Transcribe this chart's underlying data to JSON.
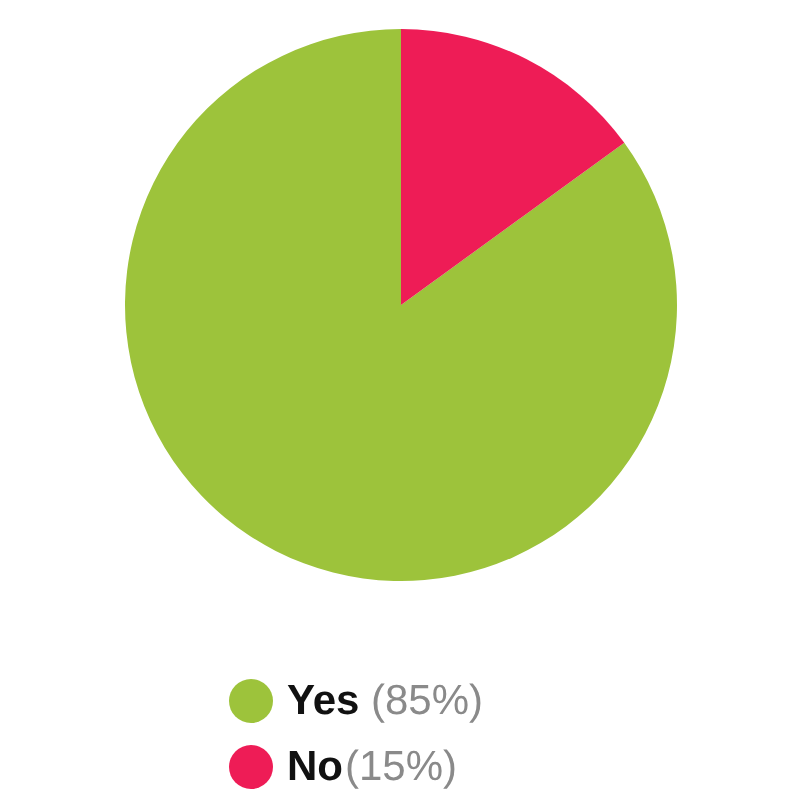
{
  "chart_data": {
    "type": "pie",
    "categories": [
      "Yes",
      "No"
    ],
    "values": [
      85,
      15
    ],
    "colors": [
      "#9dc33b",
      "#ee1c56"
    ],
    "value_labels": [
      "(85%)",
      "(15%)"
    ],
    "legend": "bottom"
  }
}
